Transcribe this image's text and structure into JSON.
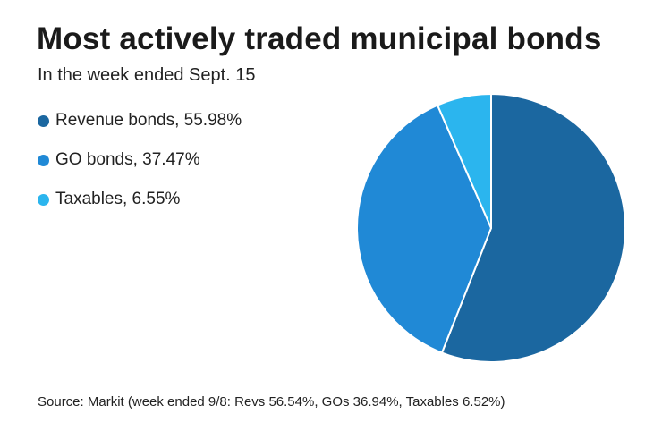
{
  "chart_data": {
    "type": "pie",
    "title": "Most actively traded municipal bonds",
    "subtitle": "In the week ended Sept. 15",
    "slices": [
      {
        "name": "Revenue bonds",
        "value": 55.98,
        "label": "Revenue bonds, 55.98%",
        "color": "#1b67a0"
      },
      {
        "name": "GO bonds",
        "value": 37.47,
        "label": "GO bonds, 37.47%",
        "color": "#2089d6"
      },
      {
        "name": "Taxables",
        "value": 6.55,
        "label": "Taxables, 6.55%",
        "color": "#2bb5ee"
      }
    ],
    "legend_position": "left",
    "source": "Source: Markit (week ended 9/8: Revs 56.54%, GOs 36.94%, Taxables 6.52%)"
  }
}
